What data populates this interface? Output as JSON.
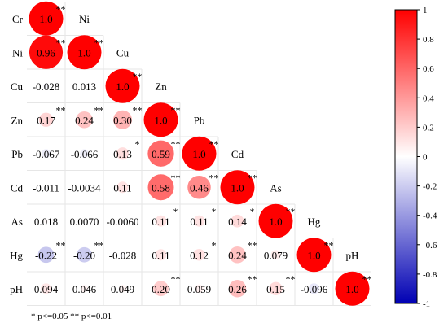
{
  "chart_data": {
    "type": "heatmap",
    "variables": [
      "Cr",
      "Ni",
      "Cu",
      "Zn",
      "Pb",
      "Cd",
      "As",
      "Hg",
      "pH"
    ],
    "matrix": [
      [
        1.0
      ],
      [
        0.96,
        1.0
      ],
      [
        -0.028,
        0.013,
        1.0
      ],
      [
        0.17,
        0.24,
        0.3,
        1.0
      ],
      [
        -0.067,
        -0.066,
        0.13,
        0.59,
        1.0
      ],
      [
        -0.011,
        -0.0034,
        0.11,
        0.58,
        0.46,
        1.0
      ],
      [
        0.018,
        0.007,
        -0.006,
        0.11,
        0.11,
        0.14,
        1.0
      ],
      [
        -0.22,
        -0.2,
        -0.028,
        0.11,
        0.12,
        0.24,
        0.079,
        1.0
      ],
      [
        0.094,
        0.046,
        0.049,
        0.2,
        0.059,
        0.26,
        0.15,
        -0.096,
        1.0
      ]
    ],
    "labels": [
      [
        "1.0"
      ],
      [
        "0.96",
        "1.0"
      ],
      [
        "-0.028",
        "0.013",
        "1.0"
      ],
      [
        "0.17",
        "0.24",
        "0.30",
        "1.0"
      ],
      [
        "-0.067",
        "-0.066",
        "0.13",
        "0.59",
        "1.0"
      ],
      [
        "-0.011",
        "-0.0034",
        "0.11",
        "0.58",
        "0.46",
        "1.0"
      ],
      [
        "0.018",
        "0.0070",
        "-0.0060",
        "0.11",
        "0.11",
        "0.14",
        "1.0"
      ],
      [
        "-0.22",
        "-0.20",
        "-0.028",
        "0.11",
        "0.12",
        "0.24",
        "0.079",
        "1.0"
      ],
      [
        "0.094",
        "0.046",
        "0.049",
        "0.20",
        "0.059",
        "0.26",
        "0.15",
        "-0.096",
        "1.0"
      ]
    ],
    "significance": [
      [
        "**"
      ],
      [
        "**",
        "**"
      ],
      [
        "",
        "",
        "**"
      ],
      [
        "**",
        "**",
        "**",
        "**"
      ],
      [
        "",
        "",
        "*",
        "**",
        "**"
      ],
      [
        "",
        "",
        "",
        "**",
        "**",
        "**"
      ],
      [
        "",
        "",
        "",
        "*",
        "*",
        "*",
        "**"
      ],
      [
        "**",
        "**",
        "",
        "",
        "*",
        "**",
        "",
        "**"
      ],
      [
        "",
        "",
        "",
        "**",
        "",
        "**",
        "**",
        "",
        "**"
      ]
    ],
    "colorbar": {
      "min": -1,
      "max": 1,
      "ticks": [
        1,
        0.8,
        0.6,
        0.4,
        0.2,
        0,
        -0.2,
        -0.4,
        -0.6,
        -0.8,
        -1
      ],
      "tick_labels": [
        "1",
        "0.8",
        "0.6",
        "0.4",
        "0.2",
        "0",
        "-0.2",
        "-0.4",
        "-0.6",
        "-0.8",
        "-1"
      ],
      "colors": {
        "negative": "#0000b3",
        "zero": "#ffffff",
        "positive": "#ff0000"
      }
    },
    "footnote": "* p<=0.05  ** p<=0.01"
  }
}
